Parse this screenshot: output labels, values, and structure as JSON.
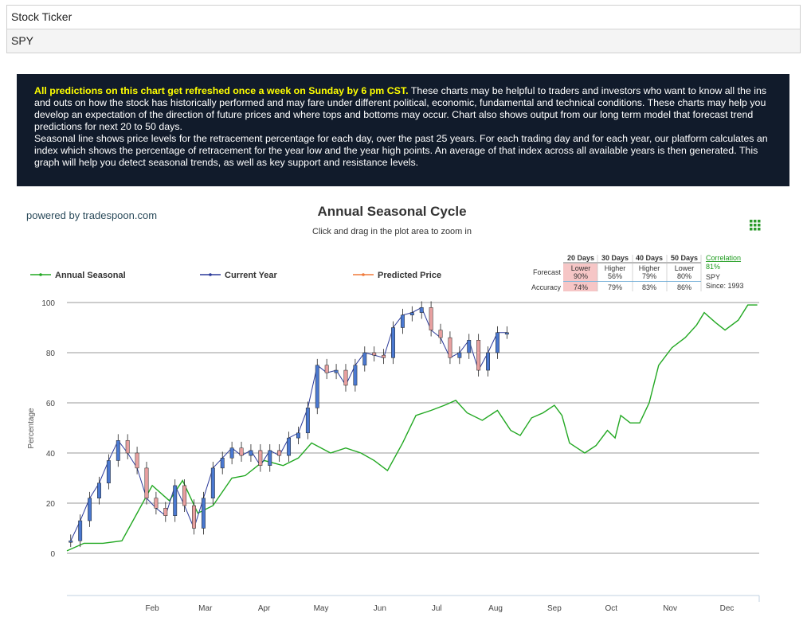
{
  "ticker": {
    "label": "Stock Ticker",
    "value": "SPY"
  },
  "info": {
    "highlight": "All predictions on this chart get refreshed once a week on Sunday by 6 pm CST.",
    "paragraph1": " These charts may be helpful to traders and investors who want to know all the ins and outs on how the stock has historically performed and may fare under different political, economic, fundamental and technical conditions. These charts may help you develop an expectation of the direction of future prices and where tops and bottoms may occur. Chart also shows output from our long term model that forecast trend predictions for next 20 to 50 days.",
    "paragraph2": "Seasonal line shows price levels for the retracement percentage for each day, over the past 25 years. For each trading day and for each year, our platform calculates an index which shows the percentage of retracement for the year low and the year high points. An average of that index across all available years is then generated. This graph will help you detect seasonal trends, as well as key support and resistance levels."
  },
  "chart": {
    "powered_by": "powered by tradespoon.com",
    "title": "Annual Seasonal Cycle",
    "subtitle": "Click and drag in the plot area to zoom in",
    "menu_icon": "grid-menu-icon",
    "legend": [
      {
        "name": "Annual Seasonal",
        "color": "#22a822"
      },
      {
        "name": "Current Year",
        "color": "#2b3a9a"
      },
      {
        "name": "Predicted Price",
        "color": "#f07a3a"
      }
    ]
  },
  "stats": {
    "headers": [
      "20 Days",
      "30 Days",
      "40 Days",
      "50 Days"
    ],
    "forecast_label": "Forecast",
    "accuracy_label": "Accuracy",
    "forecast": [
      {
        "dir": "Lower",
        "pct": "90%"
      },
      {
        "dir": "Higher",
        "pct": "56%"
      },
      {
        "dir": "Higher",
        "pct": "79%"
      },
      {
        "dir": "Lower",
        "pct": "80%"
      }
    ],
    "accuracy": [
      "74%",
      "79%",
      "83%",
      "86%"
    ],
    "correlation_label": "Correlation",
    "correlation_value": "81%",
    "symbol": "SPY",
    "since": "Since: 1993",
    "highlight_color": "#f6c6c6"
  },
  "chart_data": {
    "type": "line",
    "title": "Annual Seasonal Cycle",
    "ylabel": "Percentage",
    "xlabel": "",
    "ylim": [
      0,
      100
    ],
    "yticks": [
      0,
      20,
      40,
      60,
      80,
      100
    ],
    "grid": true,
    "legend_position": "top",
    "categories": [
      "Feb",
      "Mar",
      "Apr",
      "May",
      "Jun",
      "Jul",
      "Aug",
      "Sep",
      "Oct",
      "Nov",
      "Dec"
    ],
    "x_day_range": [
      1,
      366
    ],
    "series": [
      {
        "name": "Annual Seasonal",
        "type": "line",
        "color": "#22a822",
        "x": [
          1,
          10,
          20,
          30,
          38,
          46,
          55,
          62,
          70,
          78,
          88,
          95,
          105,
          115,
          123,
          130,
          140,
          148,
          156,
          163,
          170,
          178,
          185,
          193,
          200,
          206,
          212,
          220,
          228,
          235,
          240,
          246,
          252,
          258,
          262,
          266,
          270,
          274,
          280,
          286,
          290,
          293,
          298,
          303,
          308,
          313,
          320,
          327,
          333,
          337,
          343,
          348,
          355,
          360,
          365
        ],
        "y": [
          1,
          4,
          4,
          5,
          16,
          27,
          21,
          29,
          16,
          19,
          30,
          31,
          37,
          35,
          38,
          44,
          40,
          42,
          40,
          37,
          33,
          44,
          55,
          57,
          59,
          61,
          56,
          53,
          57,
          49,
          47,
          54,
          56,
          59,
          55,
          44,
          42,
          40,
          43,
          49,
          46,
          55,
          52,
          52,
          60,
          75,
          82,
          86,
          91,
          96,
          92,
          89,
          93,
          99,
          99
        ]
      },
      {
        "name": "Current Year",
        "type": "candlestick",
        "color": "#2b3a9a",
        "x": [
          3,
          8,
          13,
          18,
          23,
          28,
          33,
          38,
          43,
          48,
          53,
          58,
          63,
          68,
          73,
          78,
          83,
          88,
          93,
          98,
          103,
          108,
          113,
          118,
          123,
          128,
          133,
          138,
          143,
          148,
          153,
          158,
          163,
          168,
          173,
          178,
          183,
          188,
          193,
          198,
          203,
          208,
          213,
          218,
          223,
          228,
          233
        ],
        "y": [
          5,
          13,
          22,
          28,
          37,
          45,
          40,
          34,
          22,
          18,
          15,
          27,
          19,
          10,
          22,
          34,
          38,
          42,
          39,
          41,
          35,
          41,
          39,
          46,
          48,
          58,
          75,
          72,
          73,
          67,
          75,
          80,
          79,
          78,
          90,
          95,
          96,
          98,
          89,
          86,
          78,
          80,
          85,
          73,
          80,
          88,
          88
        ]
      }
    ]
  }
}
